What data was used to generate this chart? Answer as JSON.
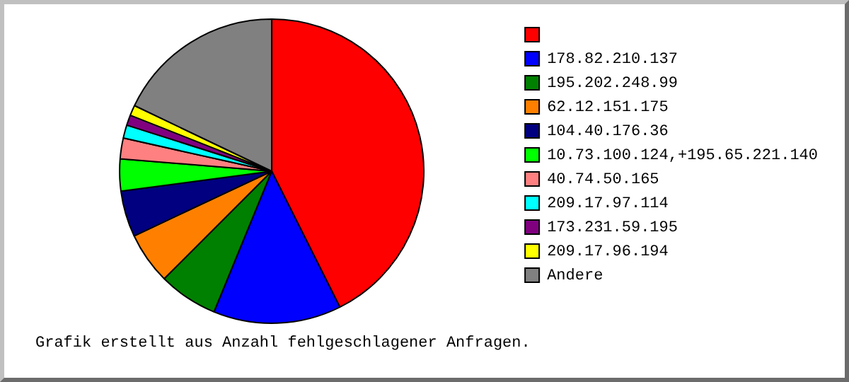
{
  "chart_data": {
    "type": "pie",
    "categories": [
      null,
      "178.82.210.137",
      "195.202.248.99",
      "62.12.151.175",
      "104.40.176.36",
      "10.73.100.124,+195.65.221.140",
      "40.74.50.165",
      "209.17.97.114",
      "173.231.59.195",
      "209.17.96.194",
      "Andere"
    ],
    "values": [
      42.6,
      13.6,
      6.3,
      5.5,
      4.9,
      3.4,
      2.2,
      1.4,
      1.1,
      1.1,
      17.9
    ],
    "colors": [
      "#ff0000",
      "#0000ff",
      "#008000",
      "#ff8000",
      "#000080",
      "#00ff00",
      "#ff8080",
      "#00ffff",
      "#800080",
      "#ffff00",
      "#808080"
    ],
    "legend": "right",
    "annotations": [
      "Grafik erstellt aus Anzahl fehlgeschlagener Anfragen."
    ]
  }
}
